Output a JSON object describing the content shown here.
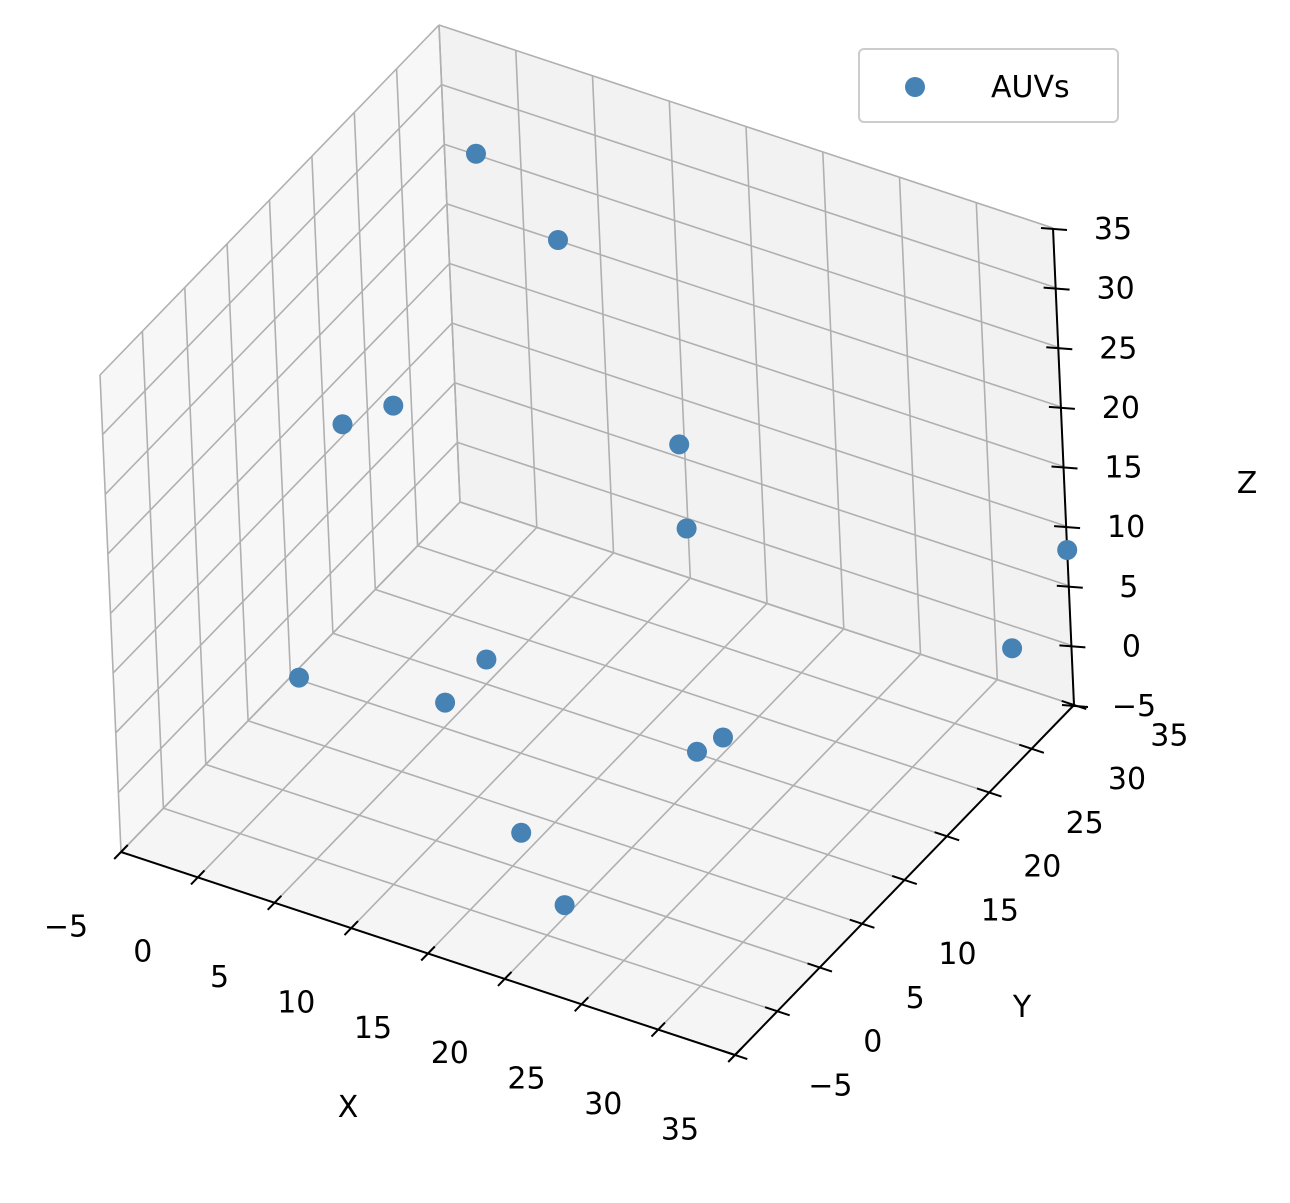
{
  "chart_data": {
    "type": "scatter",
    "projection": "3d",
    "series": [
      {
        "name": "AUVs",
        "color": "#4682b4",
        "points": [
          {
            "x": 23,
            "y": -3,
            "z": 1
          },
          {
            "x": 18,
            "y": 1,
            "z": 2
          },
          {
            "x": 14,
            "y": 28,
            "z": 6
          },
          {
            "x": 2,
            "y": 16,
            "z": 20
          },
          {
            "x": -2,
            "y": 17,
            "z": 16
          },
          {
            "x": 11,
            "y": 5,
            "z": 7
          },
          {
            "x": 8,
            "y": 15,
            "z": 2
          },
          {
            "x": 0,
            "y": 30,
            "z": 30
          },
          {
            "x": 4,
            "y": 32,
            "z": 23
          },
          {
            "x": 12,
            "y": 31,
            "z": 10
          },
          {
            "x": 2,
            "y": 4,
            "z": 6
          },
          {
            "x": 24,
            "y": 14,
            "z": 3
          },
          {
            "x": 24,
            "y": 11,
            "z": 4
          },
          {
            "x": 34,
            "y": 30,
            "z": 3
          },
          {
            "x": 35,
            "y": 35,
            "z": 8
          }
        ]
      }
    ],
    "xlabel": "X",
    "ylabel": "Y",
    "zlabel": "Z",
    "xlim": [
      -5,
      35
    ],
    "ylim": [
      -5,
      35
    ],
    "zlim": [
      -5,
      35
    ],
    "ticks": [
      -5,
      0,
      5,
      10,
      15,
      20,
      25,
      30,
      35
    ],
    "grid": true,
    "legend_position": "upper-right",
    "pane_color": "#f2f2f2",
    "grid_color": "#b0b0b0"
  }
}
